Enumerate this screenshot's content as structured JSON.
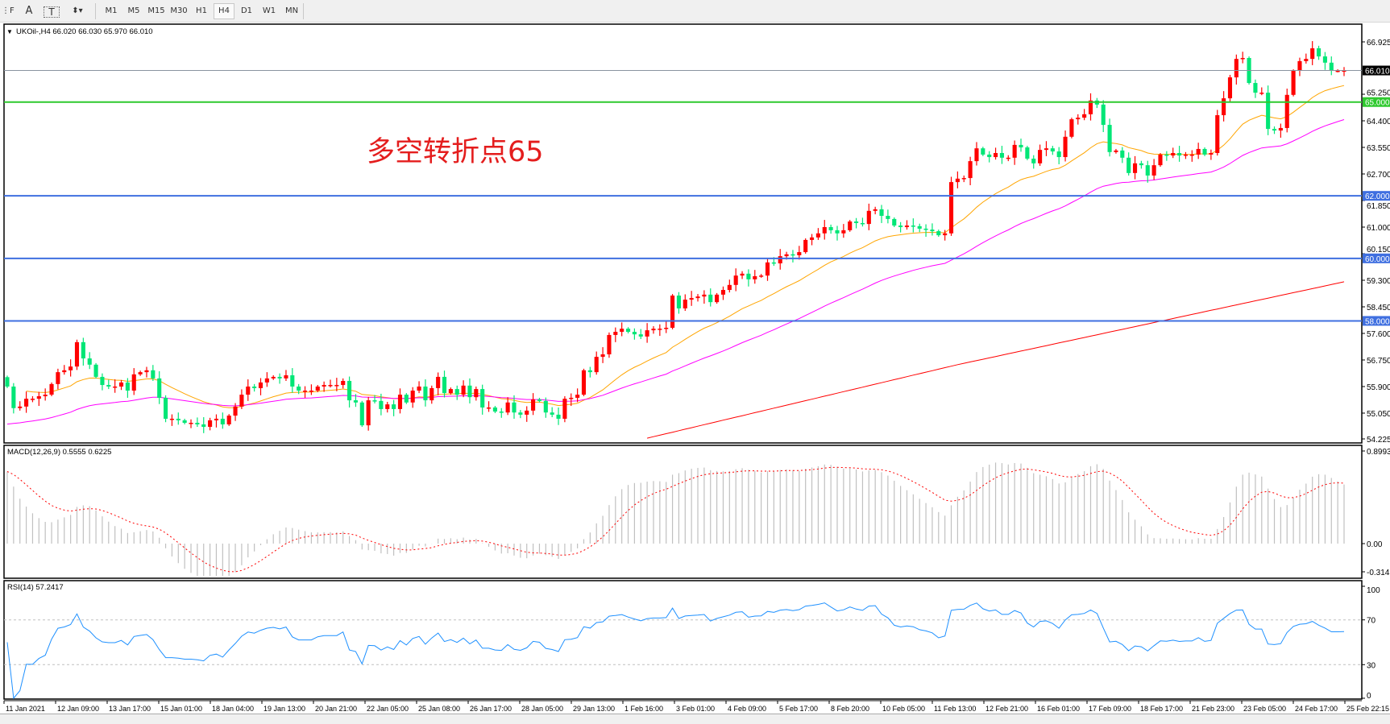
{
  "toolbar": {
    "tools": [
      {
        "name": "fibo-lines-icon",
        "glyph": "⋮F"
      },
      {
        "name": "text-icon",
        "glyph": "A"
      },
      {
        "name": "text-label-icon",
        "glyph": "T"
      },
      {
        "name": "arrows-icon",
        "glyph": "⬍▾"
      }
    ],
    "timeframes": [
      "M1",
      "M5",
      "M15",
      "M30",
      "H1",
      "H4",
      "D1",
      "W1",
      "MN"
    ],
    "active_timeframe": "H4"
  },
  "chart": {
    "symbol_header": "UKOil-,H4  66.020 66.030 65.970 66.010",
    "annotation": "多空转折点65",
    "colors": {
      "up": "#ff0000",
      "down": "#00e676",
      "ma_fast": "#ffa500",
      "ma_mid": "#ff00ff",
      "ma_slow": "#ff0000",
      "level_support": "#3f6fe0",
      "level_pivot": "#2ec92e",
      "current": "#8a94a0"
    },
    "price_axis": [
      "66.925",
      "65.250",
      "64.400",
      "63.550",
      "62.700",
      "61.850",
      "61.000",
      "60.150",
      "59.300",
      "58.450",
      "57.600",
      "56.750",
      "55.900",
      "55.050",
      "54.225"
    ],
    "levels": [
      {
        "value": 66.01,
        "label": "66.010",
        "kind": "current"
      },
      {
        "value": 65.0,
        "label": "65.000",
        "kind": "pivot"
      },
      {
        "value": 62.0,
        "label": "62.000",
        "kind": "support"
      },
      {
        "value": 60.0,
        "label": "60.000",
        "kind": "support"
      },
      {
        "value": 58.0,
        "label": "58.000",
        "kind": "support"
      }
    ],
    "time_axis": [
      "11 Jan 2021",
      "12 Jan 09:00",
      "13 Jan 17:00",
      "15 Jan 01:00",
      "18 Jan 04:00",
      "19 Jan 13:00",
      "20 Jan 21:00",
      "22 Jan 05:00",
      "25 Jan 08:00",
      "26 Jan 17:00",
      "28 Jan 05:00",
      "29 Jan 13:00",
      "1 Feb 16:00",
      "3 Feb 01:00",
      "4 Feb 09:00",
      "5 Feb 17:00",
      "8 Feb 20:00",
      "10 Feb 05:00",
      "11 Feb 13:00",
      "12 Feb 21:00",
      "16 Feb 01:00",
      "17 Feb 09:00",
      "18 Feb 17:00",
      "21 Feb 23:00",
      "23 Feb 05:00",
      "24 Feb 17:00",
      "25 Feb 22:15"
    ]
  },
  "chart_data": {
    "type": "candlestick",
    "ylim": [
      54.225,
      66.925
    ],
    "close": [
      55.9,
      55.21,
      55.26,
      55.51,
      55.51,
      55.59,
      55.64,
      55.98,
      56.36,
      56.42,
      56.54,
      57.32,
      56.8,
      56.6,
      56.21,
      55.95,
      55.9,
      55.9,
      56.03,
      55.77,
      56.29,
      56.36,
      56.42,
      56.16,
      55.54,
      54.87,
      54.87,
      54.82,
      54.74,
      54.74,
      54.69,
      54.61,
      54.82,
      54.87,
      54.69,
      54.97,
      55.26,
      55.64,
      55.9,
      55.85,
      56.03,
      56.16,
      56.21,
      56.16,
      56.26,
      55.9,
      55.77,
      55.77,
      55.77,
      55.9,
      55.95,
      55.95,
      55.95,
      56.08,
      55.46,
      55.39,
      54.66,
      55.46,
      55.44,
      55.18,
      55.33,
      55.18,
      55.64,
      55.39,
      55.77,
      55.9,
      55.46,
      55.85,
      56.21,
      55.69,
      55.82,
      55.64,
      55.93,
      55.56,
      55.82,
      55.23,
      55.23,
      55.1,
      55.07,
      55.39,
      55.07,
      55.0,
      55.13,
      55.49,
      55.44,
      55.07,
      55.0,
      54.87,
      55.51,
      55.54,
      55.64,
      56.42,
      56.36,
      56.85,
      56.93,
      57.55,
      57.65,
      57.75,
      57.65,
      57.57,
      57.5,
      57.7,
      57.75,
      57.75,
      57.78,
      58.81,
      58.4,
      58.68,
      58.73,
      58.78,
      58.84,
      58.6,
      58.84,
      58.99,
      59.15,
      59.45,
      59.51,
      59.33,
      59.43,
      59.45,
      59.87,
      59.84,
      60.07,
      60.13,
      60.1,
      60.2,
      60.59,
      60.67,
      60.8,
      61.0,
      60.9,
      60.8,
      60.9,
      61.18,
      61.13,
      61.1,
      61.52,
      61.57,
      61.36,
      61.26,
      61.05,
      61.0,
      61.05,
      61.03,
      60.95,
      60.92,
      60.87,
      60.74,
      60.8,
      62.44,
      62.55,
      62.57,
      63.11,
      63.52,
      63.32,
      63.24,
      63.37,
      63.22,
      63.22,
      63.63,
      63.55,
      63.19,
      63.04,
      63.47,
      63.52,
      63.42,
      63.24,
      63.89,
      64.45,
      64.5,
      64.61,
      65.05,
      64.92,
      64.27,
      63.4,
      63.45,
      63.22,
      62.73,
      63.04,
      62.98,
      62.65,
      62.98,
      63.32,
      63.29,
      63.37,
      63.29,
      63.32,
      63.32,
      63.5,
      63.32,
      63.37,
      64.58,
      65.12,
      65.79,
      66.38,
      66.41,
      65.61,
      65.3,
      65.3,
      64.14,
      64.09,
      64.17,
      65.23,
      66.0,
      66.31,
      66.38,
      66.72,
      66.46,
      66.26,
      66.0,
      66.0,
      66.01
    ],
    "ma_fast_period": 20,
    "ma_mid_period": 50,
    "ma_slow_points": [
      [
        100,
        54.2
      ],
      [
        150,
        56.6
      ],
      [
        211,
        59.25
      ]
    ]
  },
  "macd": {
    "label": "MACD(12,26,9) 0.5555 0.6225",
    "params": [
      12,
      26,
      9
    ],
    "ylim": [
      -0.3143,
      0.8993
    ],
    "axis": [
      "0.8993",
      "0.00",
      "-0.3143"
    ]
  },
  "rsi": {
    "label": "RSI(14) 57.2417",
    "period": 14,
    "levels": [
      70,
      30
    ],
    "axis": [
      "100",
      "70",
      "30",
      "0"
    ]
  }
}
